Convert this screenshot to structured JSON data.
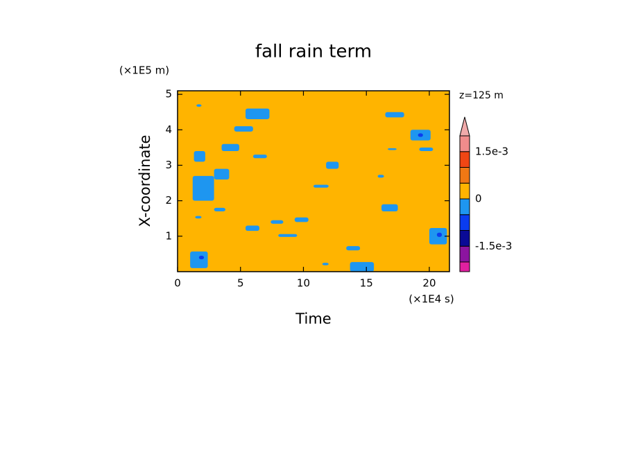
{
  "chart_data": {
    "type": "contour",
    "title": "fall rain term",
    "x_label": "Time",
    "y_label": "X-coordinate",
    "x_unit": "(×1E4 s)",
    "y_unit": "(×1E5 m)",
    "annotation": "z=125 m",
    "xlim": [
      0,
      21.6
    ],
    "ylim": [
      0,
      5.1
    ],
    "xticks": [
      0,
      5,
      10,
      15,
      20
    ],
    "yticks": [
      1,
      2,
      3,
      4,
      5
    ],
    "background_value": 0,
    "patches": [
      {
        "x": [
          1.5,
          1.9
        ],
        "y": [
          4.65,
          4.72
        ],
        "value": -0.0003
      },
      {
        "x": [
          5.4,
          7.3
        ],
        "y": [
          4.3,
          4.6
        ],
        "value": -0.0003
      },
      {
        "x": [
          16.5,
          18
        ],
        "y": [
          4.35,
          4.5
        ],
        "value": -0.0003
      },
      {
        "x": [
          4.5,
          6
        ],
        "y": [
          3.95,
          4.1
        ],
        "value": -0.0003
      },
      {
        "x": [
          18.5,
          20.1
        ],
        "y": [
          3.7,
          4.0
        ],
        "value": -0.0003
      },
      {
        "x": [
          19.2,
          20.3
        ],
        "y": [
          3.4,
          3.5
        ],
        "value": -0.0003
      },
      {
        "x": [
          3.5,
          4.9
        ],
        "y": [
          3.4,
          3.6
        ],
        "value": -0.0003
      },
      {
        "x": [
          16.7,
          17.4
        ],
        "y": [
          3.43,
          3.48
        ],
        "value": -0.0003
      },
      {
        "x": [
          1.3,
          2.2
        ],
        "y": [
          3.1,
          3.4
        ],
        "value": -0.0003
      },
      {
        "x": [
          6,
          7.1
        ],
        "y": [
          3.2,
          3.3
        ],
        "value": -0.0003
      },
      {
        "x": [
          11.8,
          12.8
        ],
        "y": [
          2.9,
          3.1
        ],
        "value": -0.0003
      },
      {
        "x": [
          2.9,
          4.1
        ],
        "y": [
          2.6,
          2.9
        ],
        "value": -0.0003
      },
      {
        "x": [
          1.2,
          2.9
        ],
        "y": [
          2.0,
          2.7
        ],
        "value": -0.0003
      },
      {
        "x": [
          15.9,
          16.4
        ],
        "y": [
          2.65,
          2.73
        ],
        "value": -0.0003
      },
      {
        "x": [
          10.8,
          12
        ],
        "y": [
          2.37,
          2.45
        ],
        "value": -0.0003
      },
      {
        "x": [
          16.2,
          17.5
        ],
        "y": [
          1.7,
          1.9
        ],
        "value": -0.0003
      },
      {
        "x": [
          2.9,
          3.8
        ],
        "y": [
          1.7,
          1.8
        ],
        "value": -0.0003
      },
      {
        "x": [
          1.4,
          1.9
        ],
        "y": [
          1.5,
          1.57
        ],
        "value": -0.0003
      },
      {
        "x": [
          9.3,
          10.4
        ],
        "y": [
          1.4,
          1.53
        ],
        "value": -0.0003
      },
      {
        "x": [
          7.4,
          8.4
        ],
        "y": [
          1.35,
          1.45
        ],
        "value": -0.0003
      },
      {
        "x": [
          5.4,
          6.5
        ],
        "y": [
          1.15,
          1.3
        ],
        "value": -0.0003
      },
      {
        "x": [
          8,
          9.5
        ],
        "y": [
          0.98,
          1.06
        ],
        "value": -0.0003
      },
      {
        "x": [
          20,
          21.4
        ],
        "y": [
          0.77,
          1.23
        ],
        "value": -0.0003
      },
      {
        "x": [
          13.4,
          14.5
        ],
        "y": [
          0.6,
          0.72
        ],
        "value": -0.0003
      },
      {
        "x": [
          1,
          2.4
        ],
        "y": [
          0.1,
          0.57
        ],
        "value": -0.0003
      },
      {
        "x": [
          11.5,
          12
        ],
        "y": [
          0.18,
          0.25
        ],
        "value": -0.0003
      },
      {
        "x": [
          13.7,
          15.6
        ],
        "y": [
          0,
          0.27
        ],
        "value": -0.0003
      },
      {
        "x": [
          19.1,
          19.5
        ],
        "y": [
          3.8,
          3.9
        ],
        "value": -0.0008
      },
      {
        "x": [
          1.7,
          2.1
        ],
        "y": [
          0.35,
          0.45
        ],
        "value": -0.0008
      },
      {
        "x": [
          20.6,
          21
        ],
        "y": [
          0.98,
          1.1
        ],
        "value": -0.0008
      }
    ],
    "colorbar": {
      "levels": [
        -0.002,
        -0.0015,
        -0.001,
        -0.0005,
        0,
        0.0005,
        0.001,
        0.0015,
        0.002
      ],
      "colors": [
        "#e020a0",
        "#8c14a0",
        "#0a0a96",
        "#0a3cf0",
        "#1e96f0",
        "#ffb400",
        "#f07814",
        "#f04614",
        "#f08c8c",
        "#f0aaaa"
      ],
      "ticks": [
        {
          "value": -0.0015,
          "label": "-1.5e-3"
        },
        0,
        {
          "value": 0.0015,
          "label": "1.5e-3"
        }
      ]
    }
  }
}
